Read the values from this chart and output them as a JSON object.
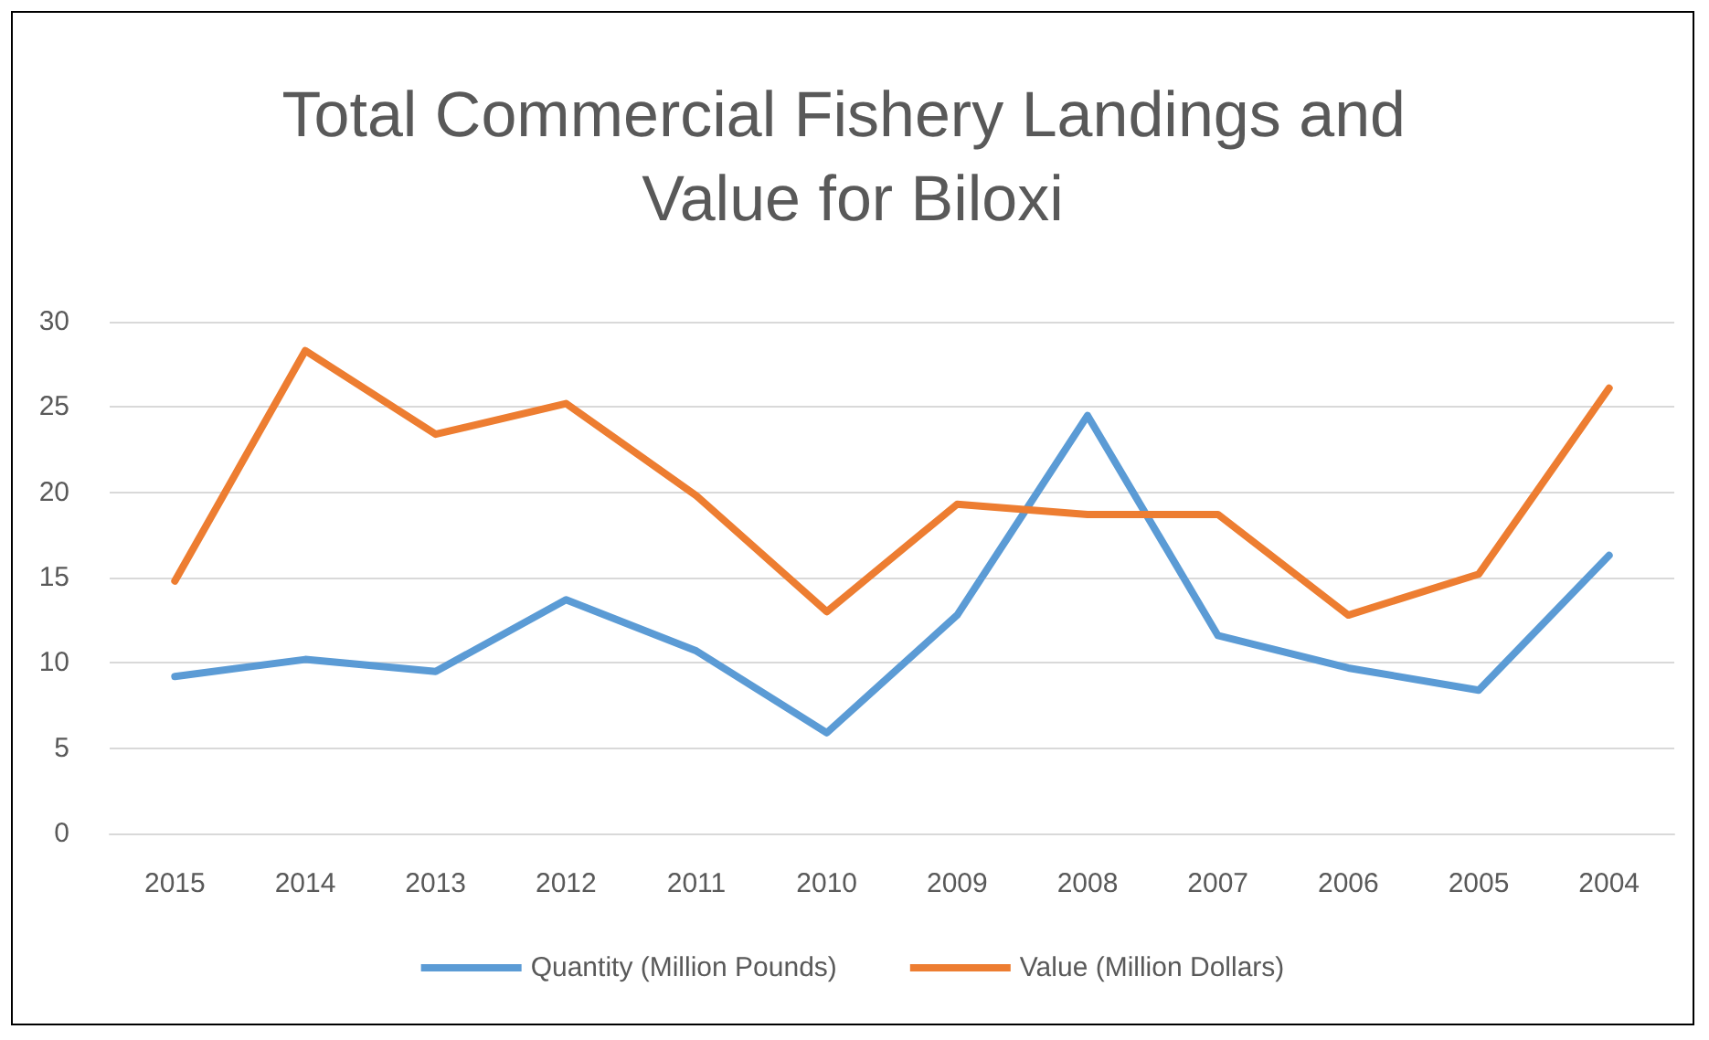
{
  "chart_data": {
    "type": "line",
    "title": "Total Commercial Fishery Landings and Value for Biloxi",
    "categories": [
      "2015",
      "2014",
      "2013",
      "2012",
      "2011",
      "2010",
      "2009",
      "2008",
      "2007",
      "2006",
      "2005",
      "2004"
    ],
    "series": [
      {
        "name": "Quantity (Million Pounds)",
        "color": "#5b9bd5",
        "values": [
          9.2,
          10.2,
          9.5,
          13.7,
          10.7,
          5.9,
          12.8,
          24.5,
          11.6,
          9.7,
          8.4,
          16.3
        ]
      },
      {
        "name": "Value (Million Dollars)",
        "color": "#ed7d31",
        "values": [
          14.8,
          28.3,
          23.4,
          25.2,
          19.8,
          13.0,
          19.3,
          18.7,
          18.7,
          12.8,
          15.2,
          26.1
        ]
      }
    ],
    "ylim": [
      0,
      30
    ],
    "yticks": [
      0,
      5,
      10,
      15,
      20,
      25,
      30
    ],
    "grid": "y",
    "legend": "bottom",
    "marker": "none",
    "line_style": "solid"
  }
}
